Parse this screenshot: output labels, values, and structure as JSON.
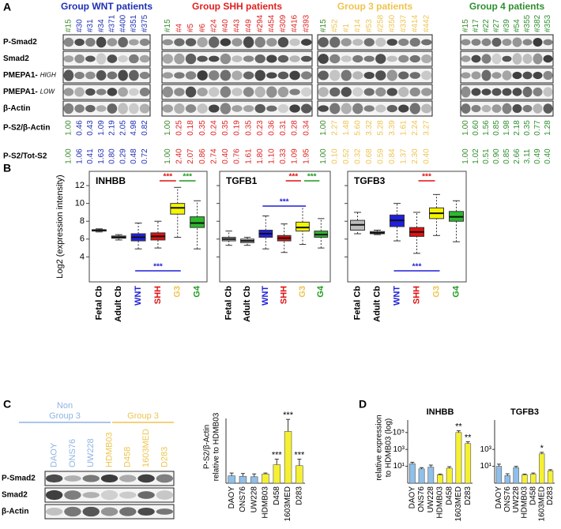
{
  "panel_labels": [
    "A",
    "B",
    "C",
    "D"
  ],
  "panel_a": {
    "reference_color": "#3b8b2b",
    "rows": [
      {
        "text": "P-Smad2"
      },
      {
        "text": "Smad2"
      },
      {
        "text": "PMEPA1-",
        "qualifier": "HIGH"
      },
      {
        "text": "PMEPA1-",
        "qualifier": "LOW"
      },
      {
        "text": "β-Actin"
      }
    ],
    "ratio_rows": [
      "P-S2/β-Actin",
      "P-S2/Tot-S2"
    ],
    "groups": [
      {
        "name": "Group WNT patients",
        "color": "#1f2fb4",
        "samples": [
          "#15",
          "#30",
          "#31",
          "#34",
          "#371",
          "#400",
          "#351",
          "#375"
        ],
        "ps2_actin": [
          "1.00",
          "0.46",
          "0.43",
          "1.09",
          "2.19",
          "2.05",
          "4.98",
          "0.82"
        ],
        "ps2_tots2": [
          "1.00",
          "1.06",
          "0.41",
          "1.63",
          "0.80",
          "0.29",
          "0.48",
          "0.72"
        ]
      },
      {
        "name": "Group SHH patients",
        "color": "#e01f1f",
        "samples": [
          "#15",
          "#4",
          "#5",
          "#6",
          "#24",
          "#40",
          "#43",
          "#49",
          "#294",
          "#454",
          "#309",
          "#416",
          "#393"
        ],
        "ps2_actin": [
          "1.00",
          "0.25",
          "0.18",
          "0.35",
          "0.24",
          "0.35",
          "0.19",
          "0.35",
          "0.23",
          "0.36",
          "0.31",
          "0.28",
          "0.34"
        ],
        "ps2_tots2": [
          "1.00",
          "2.40",
          "2.07",
          "0.86",
          "2.74",
          "0.40",
          "0.76",
          "1.61",
          "1.80",
          "1.10",
          "0.33",
          "1.09",
          "1.95"
        ]
      },
      {
        "name": "Group 3 patients",
        "color": "#eec44e",
        "samples": [
          "#15",
          "#52",
          "#1",
          "#14",
          "#53",
          "#258",
          "#350",
          "#337",
          "#414",
          "#442"
        ],
        "ps2_actin": [
          "1.00",
          "2.27",
          "1.48",
          "5.60",
          "3.32",
          "5.28",
          "3.39",
          "1.61",
          "2.24",
          "3.27"
        ],
        "ps2_tots2": [
          "1.00",
          "0.10",
          "0.52",
          "0.32",
          "0.68",
          "0.59",
          "0.84",
          "1.37",
          "2.30",
          "0.40"
        ]
      },
      {
        "name": "Group 4 patients",
        "color": "#2f8f2f",
        "samples": [
          "#15",
          "#17",
          "#22",
          "#27",
          "#39",
          "#54",
          "#355",
          "#382",
          "#353"
        ],
        "ps2_actin": [
          "1.00",
          "0.60",
          "1.56",
          "0.85",
          "1.98",
          "2.18",
          "0.35",
          "0.77",
          "1.28"
        ],
        "ps2_tots2": [
          "1.00",
          "1.02",
          "0.51",
          "0.90",
          "0.85",
          "2.66",
          "3.11",
          "0.49",
          "0.40"
        ]
      }
    ]
  },
  "panel_c": {
    "headers": [
      {
        "lines": [
          "Non",
          "Group 3"
        ],
        "color": "#8fb4e3"
      },
      {
        "lines": [
          "Group 3"
        ],
        "color": "#eec44e"
      }
    ],
    "cell_lines": [
      "DAOY",
      "ONS76",
      "UW228",
      "HDMB03",
      "D458",
      "1603MED",
      "D283"
    ],
    "cell_line_colors": [
      "#8fb4e3",
      "#8fb4e3",
      "#8fb4e3",
      "#eec44e",
      "#eec44e",
      "#eec44e",
      "#eec44e"
    ],
    "rows": [
      "P-Smad2",
      "Smad2",
      "β-Actin"
    ]
  },
  "chart_data": [
    {
      "type": "box",
      "title": "INHBB",
      "ylabel": "Log2 (expression intensity)",
      "categories": [
        "Fetal Cb",
        "Adult Cb",
        "WNT",
        "SHH",
        "G3",
        "G4"
      ],
      "label_colors": [
        "#000000",
        "#000000",
        "#1f1fd8",
        "#e01010",
        "#eec44e",
        "#1e9a1e"
      ],
      "colors": [
        "#bdbdbd",
        "#bdbdbd",
        "#1f1fe0",
        "#e01010",
        "#f5f500",
        "#2db82d"
      ],
      "boxes": [
        {
          "whislo": 6.8,
          "q1": 6.9,
          "med": 7.0,
          "q3": 7.05,
          "whishi": 7.15
        },
        {
          "whislo": 5.9,
          "q1": 6.1,
          "med": 6.2,
          "q3": 6.35,
          "whishi": 6.5
        },
        {
          "whislo": 4.9,
          "q1": 5.8,
          "med": 6.2,
          "q3": 6.6,
          "whishi": 7.8
        },
        {
          "whislo": 5.0,
          "q1": 5.9,
          "med": 6.3,
          "q3": 6.7,
          "whishi": 8.0
        },
        {
          "whislo": 6.2,
          "q1": 8.8,
          "med": 9.5,
          "q3": 10.0,
          "whishi": 11.8
        },
        {
          "whislo": 4.9,
          "q1": 7.3,
          "med": 7.8,
          "q3": 8.5,
          "whishi": 10.3
        }
      ],
      "ylim": [
        1.2,
        13.6
      ],
      "yticks": [
        4,
        6,
        8,
        10,
        12
      ],
      "tick_labels": true,
      "annotations": [
        {
          "text": "***",
          "between": [
            "SHH",
            "G3"
          ],
          "color": "#e01010",
          "side": "top"
        },
        {
          "text": "***",
          "between": [
            "G3",
            "G4"
          ],
          "color": "#1e9a1e",
          "side": "top"
        },
        {
          "text": "***",
          "between": [
            "WNT",
            "G3"
          ],
          "color": "#1f1fd8",
          "side": "bottom"
        }
      ]
    },
    {
      "type": "box",
      "title": "TGFB1",
      "categories": [
        "Fetal Cb",
        "Adult Cb",
        "WNT",
        "SHH",
        "G3",
        "G4"
      ],
      "label_colors": [
        "#000000",
        "#000000",
        "#1f1fd8",
        "#e01010",
        "#eec44e",
        "#1e9a1e"
      ],
      "colors": [
        "#bdbdbd",
        "#bdbdbd",
        "#1f1fe0",
        "#e01010",
        "#f5f500",
        "#2db82d"
      ],
      "boxes": [
        {
          "whislo": 5.3,
          "q1": 5.8,
          "med": 6.0,
          "q3": 6.2,
          "whishi": 6.9
        },
        {
          "whislo": 5.3,
          "q1": 5.6,
          "med": 5.8,
          "q3": 6.0,
          "whishi": 6.2
        },
        {
          "whislo": 4.9,
          "q1": 6.2,
          "med": 6.6,
          "q3": 7.0,
          "whishi": 8.6
        },
        {
          "whislo": 4.5,
          "q1": 5.8,
          "med": 6.1,
          "q3": 6.4,
          "whishi": 7.7
        },
        {
          "whislo": 5.4,
          "q1": 6.9,
          "med": 7.3,
          "q3": 7.9,
          "whishi": 9.7
        },
        {
          "whislo": 5.0,
          "q1": 6.2,
          "med": 6.5,
          "q3": 6.9,
          "whishi": 8.3
        }
      ],
      "ylim": [
        1.2,
        13.6
      ],
      "yticks": [
        4,
        6,
        8,
        10,
        12
      ],
      "tick_labels": false,
      "annotations": [
        {
          "text": "***",
          "between": [
            "SHH",
            "G3"
          ],
          "color": "#e01010",
          "side": "top"
        },
        {
          "text": "***",
          "between": [
            "G3",
            "G4"
          ],
          "color": "#1e9a1e",
          "side": "top"
        },
        {
          "text": "***",
          "between": [
            "WNT",
            "G3"
          ],
          "color": "#1f1fd8",
          "side": "inside"
        }
      ]
    },
    {
      "type": "box",
      "title": "TGFB3",
      "categories": [
        "Fetal Cb",
        "Adult Cb",
        "WNT",
        "SHH",
        "G3",
        "G4"
      ],
      "label_colors": [
        "#000000",
        "#000000",
        "#1f1fd8",
        "#e01010",
        "#eec44e",
        "#1e9a1e"
      ],
      "colors": [
        "#bdbdbd",
        "#bdbdbd",
        "#1f1fe0",
        "#e01010",
        "#f5f500",
        "#2db82d"
      ],
      "boxes": [
        {
          "whislo": 6.6,
          "q1": 7.0,
          "med": 7.6,
          "q3": 8.1,
          "whishi": 9.0
        },
        {
          "whislo": 6.5,
          "q1": 6.6,
          "med": 6.7,
          "q3": 6.85,
          "whishi": 7.0
        },
        {
          "whislo": 5.8,
          "q1": 7.4,
          "med": 8.1,
          "q3": 8.7,
          "whishi": 10.0
        },
        {
          "whislo": 4.4,
          "q1": 6.3,
          "med": 6.8,
          "q3": 7.3,
          "whishi": 9.0
        },
        {
          "whislo": 6.4,
          "q1": 8.3,
          "med": 8.9,
          "q3": 9.5,
          "whishi": 11.0
        },
        {
          "whislo": 5.7,
          "q1": 8.0,
          "med": 8.5,
          "q3": 9.1,
          "whishi": 10.3
        }
      ],
      "ylim": [
        1.2,
        13.6
      ],
      "yticks": [
        4,
        6,
        8,
        10,
        12
      ],
      "tick_labels": false,
      "annotations": [
        {
          "text": "***",
          "between": [
            "SHH",
            "G3"
          ],
          "color": "#e01010",
          "side": "top"
        },
        {
          "text": "***",
          "between": [
            "WNT",
            "G3"
          ],
          "color": "#1f1fd8",
          "side": "bottom"
        }
      ]
    },
    {
      "type": "bar",
      "ylabel": [
        "P-S2/β-Actin",
        "relative to HDMB03"
      ],
      "categories": [
        "DAOY",
        "ONS76",
        "UW228",
        "HDMB03",
        "D458",
        "1603MED",
        "D283"
      ],
      "values": [
        0.8,
        0.75,
        0.7,
        1.0,
        2.0,
        5.6,
        1.9
      ],
      "errors": [
        0.3,
        0.3,
        0.3,
        0.1,
        0.6,
        1.3,
        0.7
      ],
      "colors": [
        "#8fc0ea",
        "#8fc0ea",
        "#8fc0ea",
        "#f5f032",
        "#f5f032",
        "#f5f032",
        "#f5f032"
      ],
      "ylim": [
        0,
        7
      ],
      "log": false,
      "annotations": [
        {
          "text": "***",
          "category": "D458"
        },
        {
          "text": "***",
          "category": "1603MED"
        },
        {
          "text": "***",
          "category": "D283"
        }
      ]
    },
    {
      "type": "bar",
      "title": "INHBB",
      "ylabel": [
        "relative expression",
        "to HDMB03 (log)"
      ],
      "categories": [
        "DAOY",
        "ONS76",
        "UW228",
        "HDMB03",
        "D458",
        "1603MED",
        "D283"
      ],
      "values": [
        20,
        5,
        8,
        1,
        6,
        100000,
        5000
      ],
      "errors": [
        10,
        2,
        6,
        0.2,
        3,
        60000,
        3000
      ],
      "colors": [
        "#8fc0ea",
        "#8fc0ea",
        "#8fc0ea",
        "#f5f032",
        "#f5f032",
        "#f5f032",
        "#f5f032"
      ],
      "ylim": [
        0.1,
        3000000
      ],
      "log": true,
      "yticks": [
        {
          "value": 10,
          "label": "10¹"
        },
        {
          "value": 1000,
          "label": "10³"
        },
        {
          "value": 100000,
          "label": "10⁵"
        }
      ],
      "annotations": [
        {
          "text": "**",
          "category": "1603MED"
        },
        {
          "text": "**",
          "category": "D283"
        }
      ]
    },
    {
      "type": "bar",
      "title": "TGFB3",
      "categories": [
        "DAOY",
        "ONS76",
        "UW228",
        "HDMB03",
        "D458",
        "1603MED",
        "D283"
      ],
      "values": [
        10,
        0.8,
        7,
        1,
        1.2,
        300,
        3
      ],
      "errors": [
        8,
        0.5,
        3,
        0.2,
        0.4,
        150,
        1
      ],
      "colors": [
        "#8fc0ea",
        "#8fc0ea",
        "#8fc0ea",
        "#f5f032",
        "#f5f032",
        "#f5f032",
        "#f5f032"
      ],
      "ylim": [
        0.1,
        3000000
      ],
      "log": true,
      "yticks": [
        {
          "value": 10,
          "label": "10¹"
        },
        {
          "value": 1000,
          "label": "10³"
        }
      ],
      "annotations": [
        {
          "text": "*",
          "category": "1603MED"
        }
      ]
    }
  ]
}
